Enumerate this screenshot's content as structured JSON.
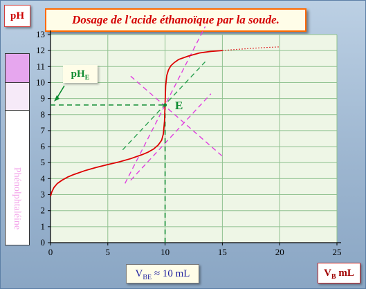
{
  "badges": {
    "ph": "pH",
    "vbe_main": "V",
    "vbe_sub": "BE",
    "vbe_rest": " ≈ 10 mL",
    "vb_main": "V",
    "vb_sub": "B",
    "vb_rest": " mL",
    "phe_main": "pH",
    "phe_sub": "E"
  },
  "chart_data": {
    "type": "line",
    "title": "Dosage de l'acide éthanoïque  par la soude.",
    "xlabel": "V_B mL",
    "ylabel": "pH",
    "xlim": [
      0,
      25
    ],
    "ylim": [
      0,
      13
    ],
    "x_ticks": [
      0,
      5,
      10,
      15,
      20,
      25
    ],
    "y_ticks": [
      0,
      1,
      2,
      3,
      4,
      5,
      6,
      7,
      8,
      9,
      10,
      11,
      12,
      13
    ],
    "grid": true,
    "series": [
      {
        "style": "solid",
        "color": "#dd0000",
        "x": [
          0,
          0.1,
          0.3,
          0.6,
          1,
          1.5,
          2,
          3,
          4,
          5,
          6,
          7,
          8,
          8.5,
          9,
          9.4,
          9.7,
          9.85,
          9.95,
          10.0,
          10.05,
          10.15,
          10.3,
          10.5,
          10.8,
          11.2,
          12,
          13,
          14,
          15
        ],
        "y": [
          2.9,
          3.15,
          3.45,
          3.7,
          3.9,
          4.1,
          4.25,
          4.5,
          4.7,
          4.88,
          5.05,
          5.25,
          5.5,
          5.65,
          5.85,
          6.1,
          6.4,
          6.8,
          7.6,
          8.7,
          9.8,
          10.45,
          10.8,
          11.05,
          11.25,
          11.45,
          11.65,
          11.85,
          11.95,
          12.0
        ]
      },
      {
        "style": "dotted",
        "color": "#dd0000",
        "x": [
          15,
          16,
          17,
          18,
          19,
          20
        ],
        "y": [
          12.0,
          12.06,
          12.11,
          12.16,
          12.2,
          12.23
        ]
      }
    ],
    "tangents": [
      {
        "color": "#e040e0",
        "x": [
          6.5,
          13.5
        ],
        "y": [
          3.7,
          13.5
        ]
      },
      {
        "color": "#e040e0",
        "x": [
          7,
          14
        ],
        "y": [
          3.9,
          9.3
        ]
      },
      {
        "color": "#e040e0",
        "x": [
          7,
          15
        ],
        "y": [
          10.4,
          5.4
        ]
      },
      {
        "color": "#2aa050",
        "x": [
          6.3,
          13.5
        ],
        "y": [
          5.8,
          11.3
        ]
      }
    ],
    "equivalence": {
      "label": "E",
      "x": 10,
      "y": 8.6,
      "color": "#0b8a2f"
    },
    "indicator": {
      "name": "Phénolphtaléine",
      "zones": [
        {
          "color": "#e6a6ee"
        },
        {
          "color": "#f6eaf8"
        },
        {
          "color": "#ffffff"
        }
      ]
    }
  }
}
